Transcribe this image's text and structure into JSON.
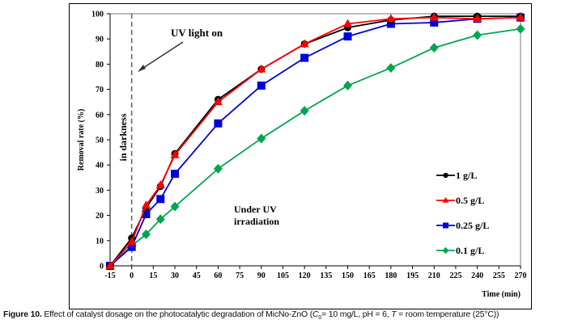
{
  "chart_data": {
    "type": "line",
    "xlabel": "Time (min)",
    "ylabel": "Removal rate (%)",
    "xlim": [
      -15,
      270
    ],
    "ylim": [
      0,
      100
    ],
    "xticks": [
      -15,
      0,
      15,
      30,
      45,
      60,
      75,
      90,
      105,
      120,
      135,
      150,
      165,
      180,
      195,
      210,
      225,
      240,
      255,
      270
    ],
    "yticks": [
      0,
      10,
      20,
      30,
      40,
      50,
      60,
      70,
      80,
      90,
      100
    ],
    "grid": false,
    "legend_position": "right",
    "x": [
      -15,
      0,
      10,
      20,
      30,
      60,
      90,
      120,
      150,
      180,
      210,
      240,
      270
    ],
    "series": [
      {
        "name": "1 g/L",
        "color": "#000000",
        "marker": "circle",
        "values": [
          0,
          11,
          23,
          31.5,
          44.5,
          66,
          78,
          88,
          94.5,
          97.5,
          99,
          99,
          99
        ]
      },
      {
        "name": "0.5 g/L",
        "color": "#ff0000",
        "marker": "triangle",
        "values": [
          0,
          9.5,
          24,
          32,
          44,
          65,
          78,
          88,
          96,
          98,
          98.5,
          98,
          98.5
        ]
      },
      {
        "name": "0.25 g/L",
        "color": "#0000dd",
        "marker": "square",
        "values": [
          0,
          7.5,
          20.5,
          26.5,
          36.5,
          56.5,
          71.5,
          82.5,
          91,
          96,
          96.5,
          98,
          98.5
        ]
      },
      {
        "name": "0.1 g/L",
        "color": "#00a550",
        "marker": "diamond",
        "values": [
          0,
          8,
          12.5,
          18.5,
          23.5,
          38.5,
          50.5,
          61.5,
          71.5,
          78.5,
          86.5,
          91.5,
          94
        ]
      }
    ],
    "annotations": {
      "uv_light_on": "UV light on",
      "in_darkness": "in darkness",
      "under_uv_line1": "Under UV",
      "under_uv_line2": "irradiation"
    }
  },
  "caption": {
    "label": "Figure 10.",
    "text_before": " Effect of catalyst dosage on the photocatalytic degradation of MicNo-ZnO (",
    "c_symbol": "C",
    "c_sub": "0",
    "text_mid": "= 10 mg/L, pH = 6, ",
    "t_symbol": "T",
    "text_after": " = room temperature (25°C))"
  }
}
